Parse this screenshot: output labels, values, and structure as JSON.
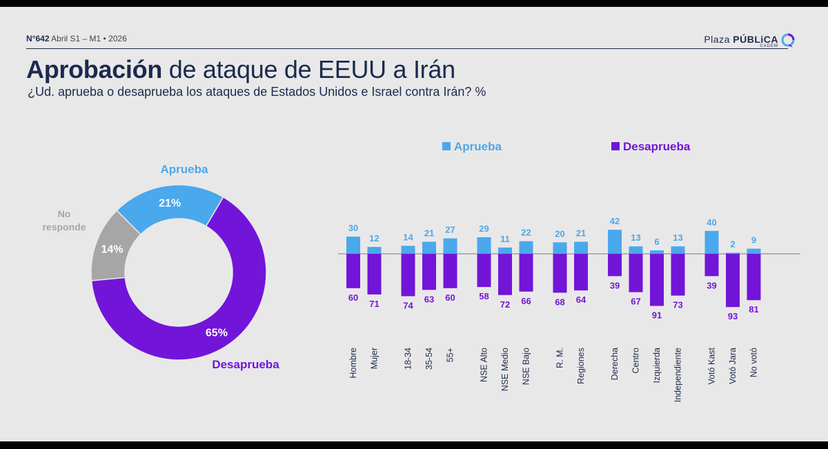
{
  "header": {
    "number": "N°642",
    "period": "Abril S1 – M1 • 2026"
  },
  "logo": {
    "brand_light": "Plaza",
    "brand_bold": "PÚBLiCA",
    "sub": "CADEM"
  },
  "title": {
    "bold": "Aprobación",
    "rest": " de ataque de EEUU a Irán"
  },
  "subtitle": "¿Ud. aprueba o desaprueba los ataques de Estados Unidos e Israel contra Irán? %",
  "colors": {
    "aprueba": "#4aa8ec",
    "desaprueba": "#7215d9",
    "no_responde": "#a6a6a6",
    "text": "#1b2a4e"
  },
  "chart_data": [
    {
      "type": "pie",
      "donut": true,
      "labels": [
        "Aprueba",
        "Desaprueba",
        "No responde"
      ],
      "values": [
        21,
        65,
        14
      ],
      "value_labels": [
        "21%",
        "65%",
        "14%"
      ],
      "outer_labels": [
        [
          "Aprueba"
        ],
        [
          "Desaprueba"
        ],
        [
          "No",
          "responde"
        ]
      ]
    },
    {
      "type": "bar",
      "diverging": true,
      "legend": [
        "Aprueba",
        "Desaprueba"
      ],
      "legend_position": "top",
      "categories": [
        "Hombre",
        "Mujer",
        "18-34",
        "35-54",
        "55+",
        "NSE Alto",
        "NSE Medio",
        "NSE Bajo",
        "R. M.",
        "Regiones",
        "Derecha",
        "Centro",
        "Izquierda",
        "Independiente",
        "Votó Kast",
        "Votó Jara",
        "No votó"
      ],
      "groups": [
        [
          0,
          1
        ],
        [
          2,
          3,
          4
        ],
        [
          5,
          6,
          7
        ],
        [
          8,
          9
        ],
        [
          10,
          11,
          12,
          13
        ],
        [
          14,
          15,
          16
        ]
      ],
      "series": [
        {
          "name": "Aprueba",
          "values": [
            30,
            12,
            14,
            21,
            27,
            29,
            11,
            22,
            20,
            21,
            42,
            13,
            6,
            13,
            40,
            2,
            9
          ]
        },
        {
          "name": "Desaprueba",
          "values": [
            60,
            71,
            74,
            63,
            60,
            58,
            72,
            66,
            68,
            64,
            39,
            67,
            91,
            73,
            39,
            93,
            81
          ]
        }
      ]
    }
  ]
}
